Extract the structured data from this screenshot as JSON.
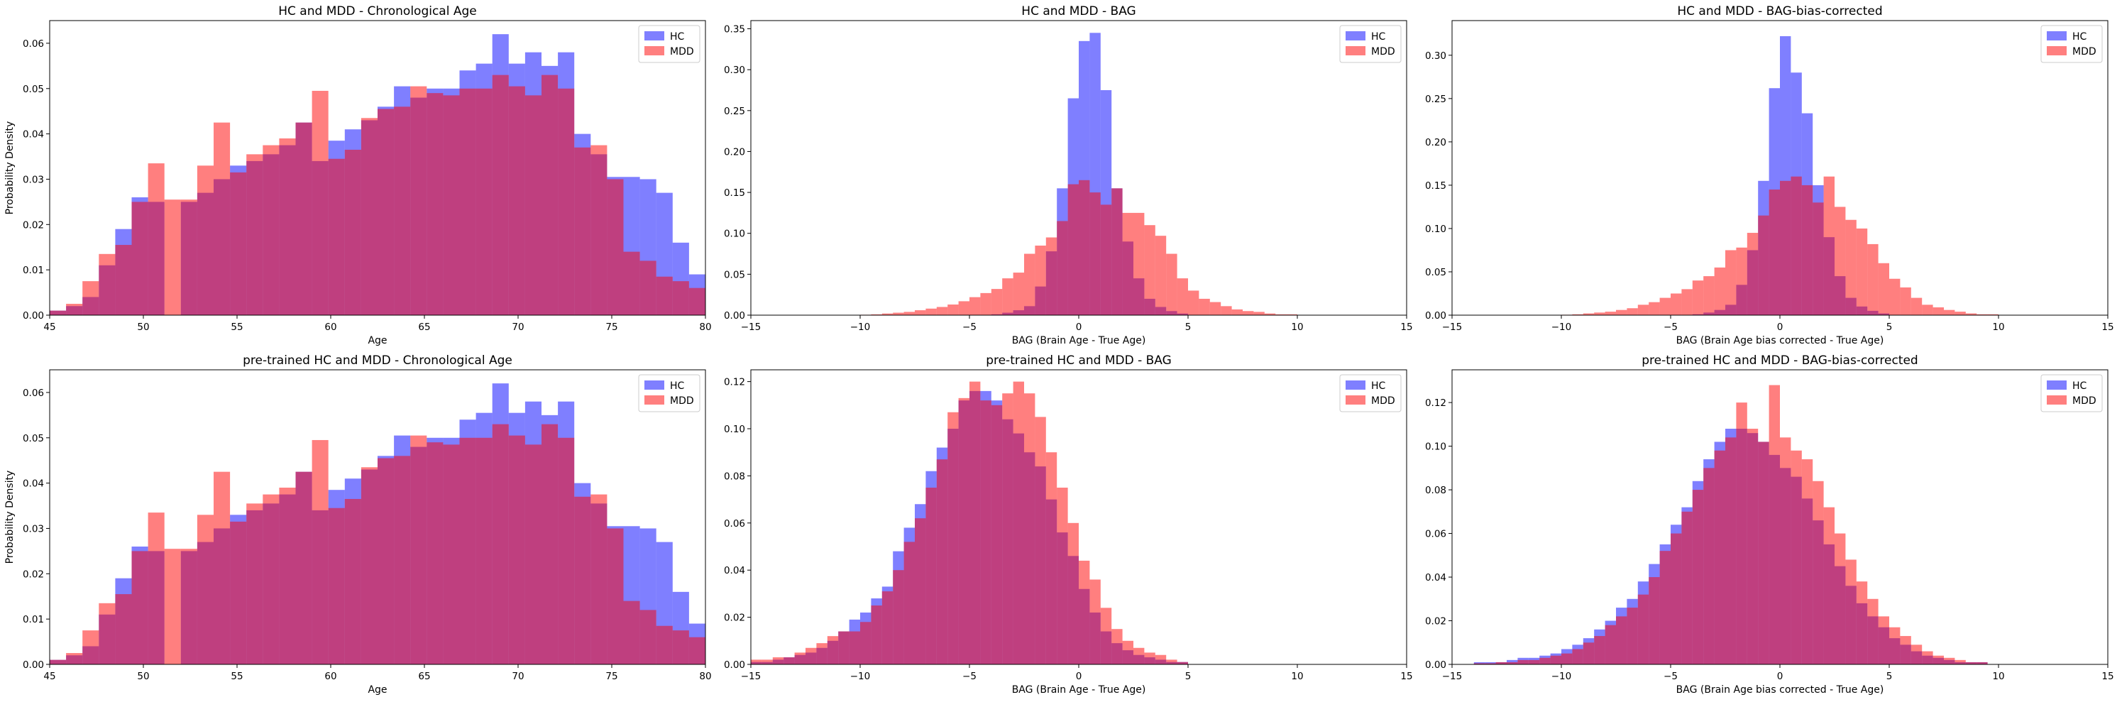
{
  "colors": {
    "hc": "#0000ff",
    "mdd": "#ff0000"
  },
  "chart_data": [
    {
      "type": "bar",
      "title": "HC and MDD - Chronological Age",
      "xlabel": "Age",
      "ylabel": "Probability Density",
      "xlim": [
        45,
        80
      ],
      "ylim": [
        0,
        0.065
      ],
      "xticks": [
        45,
        50,
        55,
        60,
        65,
        70,
        75,
        80
      ],
      "yticks": [
        0.0,
        0.01,
        0.02,
        0.03,
        0.04,
        0.05,
        0.06
      ],
      "yticklabels": [
        "0.00",
        "0.01",
        "0.02",
        "0.03",
        "0.04",
        "0.05",
        "0.06"
      ],
      "legend": "top-right",
      "bin_start": 45,
      "bin_width": 0.875,
      "series": [
        {
          "name": "HC",
          "values": [
            0.001,
            0.002,
            0.004,
            0.011,
            0.019,
            0.026,
            0.025,
            0.0,
            0.025,
            0.027,
            0.03,
            0.033,
            0.034,
            0.0355,
            0.0375,
            0.0425,
            0.034,
            0.0385,
            0.041,
            0.043,
            0.046,
            0.0505,
            0.048,
            0.05,
            0.05,
            0.054,
            0.0555,
            0.062,
            0.0555,
            0.058,
            0.055,
            0.058,
            0.04,
            0.0355,
            0.0305,
            0.0305,
            0.03,
            0.027,
            0.016,
            0.009,
            0.006,
            0.001
          ]
        },
        {
          "name": "MDD",
          "values": [
            0.001,
            0.0025,
            0.0075,
            0.0135,
            0.0155,
            0.025,
            0.0335,
            0.0255,
            0.0255,
            0.033,
            0.0425,
            0.0315,
            0.0355,
            0.0375,
            0.039,
            0.0425,
            0.0495,
            0.0345,
            0.0365,
            0.0435,
            0.0455,
            0.046,
            0.0505,
            0.049,
            0.0485,
            0.05,
            0.05,
            0.053,
            0.0505,
            0.0485,
            0.053,
            0.05,
            0.037,
            0.0375,
            0.03,
            0.014,
            0.012,
            0.0085,
            0.0075,
            0.006,
            0.003,
            0.001
          ]
        }
      ]
    },
    {
      "type": "bar",
      "title": "HC and MDD - BAG",
      "xlabel": "BAG (Brain Age - True Age)",
      "ylabel": "",
      "xlim": [
        -15,
        15
      ],
      "ylim": [
        0,
        0.36
      ],
      "xticks": [
        -15,
        -10,
        -5,
        0,
        5,
        10,
        15
      ],
      "xticklabels": [
        "−15",
        "−10",
        "−5",
        "0",
        "5",
        "10",
        "15"
      ],
      "yticks": [
        0.0,
        0.05,
        0.1,
        0.15,
        0.2,
        0.25,
        0.3,
        0.35
      ],
      "yticklabels": [
        "0.00",
        "0.05",
        "0.10",
        "0.15",
        "0.20",
        "0.25",
        "0.30",
        "0.35"
      ],
      "legend": "top-right",
      "bin_start": -10,
      "bin_width": 0.5,
      "series": [
        {
          "name": "HC",
          "values": [
            0,
            0,
            0,
            0,
            0,
            0,
            0,
            0,
            0,
            0,
            0,
            0,
            0.001,
            0.003,
            0.006,
            0.011,
            0.035,
            0.078,
            0.155,
            0.265,
            0.335,
            0.345,
            0.275,
            0.155,
            0.09,
            0.045,
            0.02,
            0.01,
            0.005,
            0.002,
            0,
            0,
            0,
            0,
            0,
            0,
            0,
            0,
            0,
            0
          ]
        },
        {
          "name": "MDD",
          "values": [
            0.0005,
            0.001,
            0.002,
            0.003,
            0.004,
            0.006,
            0.008,
            0.01,
            0.013,
            0.017,
            0.022,
            0.027,
            0.032,
            0.045,
            0.052,
            0.075,
            0.085,
            0.095,
            0.115,
            0.16,
            0.165,
            0.15,
            0.135,
            0.155,
            0.125,
            0.125,
            0.11,
            0.097,
            0.075,
            0.045,
            0.03,
            0.02,
            0.016,
            0.011,
            0.007,
            0.005,
            0.004,
            0.002,
            0.001,
            0.001
          ]
        }
      ]
    },
    {
      "type": "bar",
      "title": "HC and MDD - BAG-bias-corrected",
      "xlabel": "BAG (Brain Age bias corrected - True Age)",
      "ylabel": "",
      "xlim": [
        -15,
        15
      ],
      "ylim": [
        0,
        0.34
      ],
      "xticks": [
        -15,
        -10,
        -5,
        0,
        5,
        10,
        15
      ],
      "xticklabels": [
        "−15",
        "−10",
        "−5",
        "0",
        "5",
        "10",
        "15"
      ],
      "yticks": [
        0.0,
        0.05,
        0.1,
        0.15,
        0.2,
        0.25,
        0.3
      ],
      "yticklabels": [
        "0.00",
        "0.05",
        "0.10",
        "0.15",
        "0.20",
        "0.25",
        "0.30"
      ],
      "legend": "top-right",
      "bin_start": -10,
      "bin_width": 0.5,
      "series": [
        {
          "name": "HC",
          "values": [
            0,
            0,
            0,
            0,
            0,
            0,
            0,
            0,
            0,
            0,
            0,
            0,
            0.001,
            0.003,
            0.006,
            0.012,
            0.035,
            0.075,
            0.155,
            0.262,
            0.322,
            0.28,
            0.233,
            0.15,
            0.09,
            0.045,
            0.02,
            0.01,
            0.005,
            0.002,
            0,
            0,
            0,
            0,
            0,
            0,
            0,
            0,
            0,
            0
          ]
        },
        {
          "name": "MDD",
          "values": [
            0.0005,
            0.001,
            0.002,
            0.003,
            0.004,
            0.006,
            0.008,
            0.012,
            0.015,
            0.02,
            0.025,
            0.03,
            0.04,
            0.045,
            0.055,
            0.075,
            0.078,
            0.095,
            0.115,
            0.145,
            0.155,
            0.16,
            0.15,
            0.13,
            0.16,
            0.125,
            0.11,
            0.1,
            0.082,
            0.06,
            0.042,
            0.032,
            0.02,
            0.012,
            0.009,
            0.006,
            0.004,
            0.002,
            0.001,
            0.001
          ]
        }
      ]
    },
    {
      "type": "bar",
      "title": "pre-trained HC and MDD - Chronological Age",
      "xlabel": "Age",
      "ylabel": "Probability Density",
      "xlim": [
        45,
        80
      ],
      "ylim": [
        0,
        0.065
      ],
      "xticks": [
        45,
        50,
        55,
        60,
        65,
        70,
        75,
        80
      ],
      "yticks": [
        0.0,
        0.01,
        0.02,
        0.03,
        0.04,
        0.05,
        0.06
      ],
      "yticklabels": [
        "0.00",
        "0.01",
        "0.02",
        "0.03",
        "0.04",
        "0.05",
        "0.06"
      ],
      "legend": "top-right",
      "bin_start": 45,
      "bin_width": 0.875,
      "series": [
        {
          "name": "HC",
          "values": [
            0.001,
            0.002,
            0.004,
            0.011,
            0.019,
            0.026,
            0.025,
            0.0,
            0.025,
            0.027,
            0.03,
            0.033,
            0.034,
            0.0355,
            0.0375,
            0.0425,
            0.034,
            0.0385,
            0.041,
            0.043,
            0.046,
            0.0505,
            0.048,
            0.05,
            0.05,
            0.054,
            0.0555,
            0.062,
            0.0555,
            0.058,
            0.055,
            0.058,
            0.04,
            0.0355,
            0.0305,
            0.0305,
            0.03,
            0.027,
            0.016,
            0.009,
            0.006,
            0.001
          ]
        },
        {
          "name": "MDD",
          "values": [
            0.001,
            0.0025,
            0.0075,
            0.0135,
            0.0155,
            0.025,
            0.0335,
            0.0255,
            0.0255,
            0.033,
            0.0425,
            0.0315,
            0.0355,
            0.0375,
            0.039,
            0.0425,
            0.0495,
            0.0345,
            0.0365,
            0.0435,
            0.0455,
            0.046,
            0.0505,
            0.049,
            0.0485,
            0.05,
            0.05,
            0.053,
            0.0505,
            0.0485,
            0.053,
            0.05,
            0.037,
            0.0375,
            0.03,
            0.014,
            0.012,
            0.0085,
            0.0075,
            0.006,
            0.003,
            0.001
          ]
        }
      ]
    },
    {
      "type": "bar",
      "title": "pre-trained  HC and MDD - BAG",
      "xlabel": "BAG (Brain Age - True Age)",
      "ylabel": "",
      "xlim": [
        -15,
        15
      ],
      "ylim": [
        0,
        0.125
      ],
      "xticks": [
        -15,
        -10,
        -5,
        0,
        5,
        10,
        15
      ],
      "xticklabels": [
        "−15",
        "−10",
        "−5",
        "0",
        "5",
        "10",
        "15"
      ],
      "yticks": [
        0.0,
        0.02,
        0.04,
        0.06,
        0.08,
        0.1,
        0.12
      ],
      "yticklabels": [
        "0.00",
        "0.02",
        "0.04",
        "0.06",
        "0.08",
        "0.10",
        "0.12"
      ],
      "legend": "top-right",
      "bin_start": -15,
      "bin_width": 0.5,
      "series": [
        {
          "name": "HC",
          "values": [
            0.001,
            0.001,
            0.002,
            0.003,
            0.004,
            0.005,
            0.007,
            0.01,
            0.014,
            0.019,
            0.022,
            0.028,
            0.033,
            0.048,
            0.058,
            0.068,
            0.082,
            0.092,
            0.1,
            0.112,
            0.116,
            0.116,
            0.112,
            0.104,
            0.098,
            0.09,
            0.084,
            0.07,
            0.056,
            0.046,
            0.032,
            0.022,
            0.014,
            0.009,
            0.006,
            0.004,
            0.003,
            0.002,
            0.001,
            0.001,
            0,
            0,
            0,
            0
          ]
        },
        {
          "name": "MDD",
          "values": [
            0.002,
            0.002,
            0.003,
            0.003,
            0.005,
            0.007,
            0.009,
            0.012,
            0.014,
            0.014,
            0.018,
            0.025,
            0.031,
            0.04,
            0.052,
            0.062,
            0.075,
            0.087,
            0.107,
            0.113,
            0.12,
            0.112,
            0.11,
            0.115,
            0.12,
            0.115,
            0.105,
            0.09,
            0.075,
            0.06,
            0.044,
            0.036,
            0.024,
            0.015,
            0.01,
            0.007,
            0.005,
            0.004,
            0.002,
            0.001,
            0,
            0,
            0,
            0
          ]
        }
      ]
    },
    {
      "type": "bar",
      "title": "pre-trained HC and MDD - BAG-bias-corrected",
      "xlabel": "BAG (Brain Age bias corrected - True Age)",
      "ylabel": "",
      "xlim": [
        -15,
        15
      ],
      "ylim": [
        0,
        0.135
      ],
      "xticks": [
        -15,
        -10,
        -5,
        0,
        5,
        10,
        15
      ],
      "xticklabels": [
        "−15",
        "−10",
        "−5",
        "0",
        "5",
        "10",
        "15"
      ],
      "yticks": [
        0.0,
        0.02,
        0.04,
        0.06,
        0.08,
        0.1,
        0.12
      ],
      "yticklabels": [
        "0.00",
        "0.02",
        "0.04",
        "0.06",
        "0.08",
        "0.10",
        "0.12"
      ],
      "legend": "top-right",
      "bin_start": -14,
      "bin_width": 0.5,
      "series": [
        {
          "name": "HC",
          "values": [
            0.001,
            0.001,
            0.001,
            0.002,
            0.003,
            0.003,
            0.004,
            0.005,
            0.007,
            0.009,
            0.012,
            0.016,
            0.02,
            0.026,
            0.03,
            0.038,
            0.046,
            0.055,
            0.064,
            0.072,
            0.084,
            0.094,
            0.102,
            0.108,
            0.108,
            0.106,
            0.102,
            0.096,
            0.09,
            0.086,
            0.076,
            0.066,
            0.055,
            0.045,
            0.036,
            0.028,
            0.022,
            0.017,
            0.012,
            0.009,
            0.006,
            0.004,
            0.003,
            0.002,
            0.001,
            0.001,
            0.001,
            0,
            0,
            0,
            0,
            0,
            0,
            0,
            0,
            0
          ]
        },
        {
          "name": "MDD",
          "values": [
            0.0005,
            0.0005,
            0.001,
            0.001,
            0.002,
            0.002,
            0.003,
            0.004,
            0.005,
            0.007,
            0.01,
            0.013,
            0.018,
            0.022,
            0.026,
            0.032,
            0.04,
            0.052,
            0.06,
            0.07,
            0.08,
            0.09,
            0.098,
            0.104,
            0.12,
            0.108,
            0.102,
            0.128,
            0.104,
            0.098,
            0.094,
            0.084,
            0.072,
            0.06,
            0.048,
            0.038,
            0.03,
            0.022,
            0.017,
            0.013,
            0.009,
            0.006,
            0.004,
            0.003,
            0.002,
            0.001,
            0.001,
            0,
            0,
            0,
            0,
            0,
            0,
            0,
            0,
            0
          ]
        }
      ]
    }
  ]
}
